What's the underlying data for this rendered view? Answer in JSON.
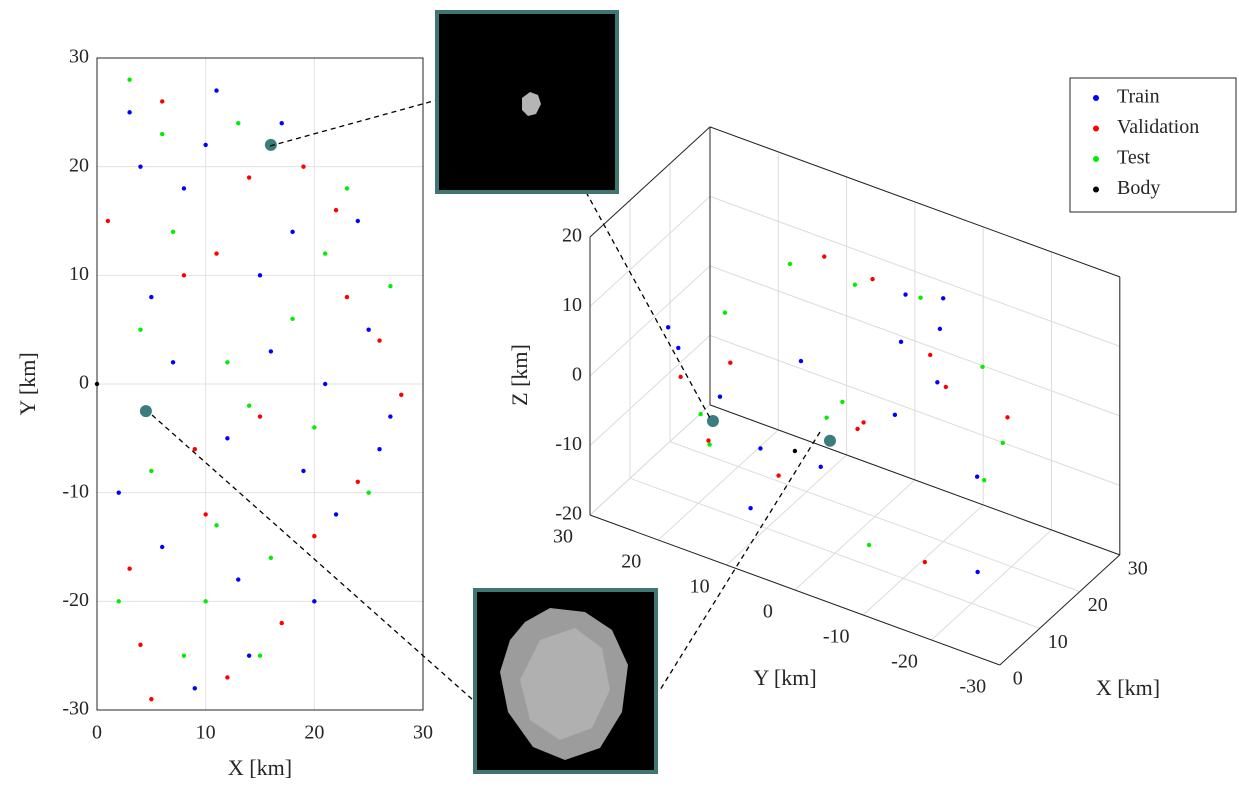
{
  "chart_data": [
    {
      "type": "scatter",
      "xlabel": "X [km]",
      "ylabel": "Y [km]",
      "xlim": [
        0,
        30
      ],
      "ylim": [
        -30,
        30
      ],
      "xticks": [
        0,
        10,
        20,
        30
      ],
      "yticks": [
        -30,
        -20,
        -10,
        0,
        10,
        20,
        30
      ],
      "grid": true,
      "series": [
        {
          "color": "#0000ff",
          "x": [
            3,
            8,
            12,
            15,
            20,
            25,
            27,
            6,
            10,
            18,
            22,
            5,
            14,
            9,
            24,
            2,
            16,
            11,
            7,
            19,
            13,
            4,
            21,
            26,
            17
          ],
          "y": [
            25,
            18,
            -5,
            10,
            -20,
            5,
            -3,
            -15,
            22,
            14,
            -12,
            8,
            -25,
            -28,
            15,
            -10,
            3,
            27,
            2,
            -8,
            -18,
            20,
            0,
            -6,
            24
          ]
        },
        {
          "color": "#ff0000",
          "x": [
            1,
            6,
            11,
            17,
            23,
            28,
            4,
            9,
            14,
            20,
            24,
            3,
            12,
            8,
            19,
            15,
            5,
            26,
            10,
            22
          ],
          "y": [
            15,
            26,
            12,
            -22,
            8,
            -1,
            -24,
            -6,
            19,
            -14,
            -9,
            -17,
            -27,
            10,
            20,
            -3,
            -29,
            4,
            -12,
            16
          ]
        },
        {
          "color": "#00ee00",
          "x": [
            2,
            7,
            13,
            18,
            25,
            5,
            10,
            16,
            21,
            3,
            12,
            8,
            23,
            15,
            6,
            20,
            27,
            11,
            4,
            14
          ],
          "y": [
            -20,
            14,
            24,
            6,
            -10,
            -8,
            -20,
            -16,
            12,
            28,
            2,
            -25,
            18,
            -25,
            23,
            -4,
            9,
            -13,
            5,
            -2
          ]
        },
        {
          "color": "#000000",
          "x": [
            0
          ],
          "y": [
            0
          ]
        }
      ],
      "highlight_color": "#3a7d7c",
      "highlights": [
        {
          "x": 16,
          "y": 22
        },
        {
          "x": 4.5,
          "y": -2.5
        }
      ]
    },
    {
      "type": "scatter3d",
      "xlabel": "X [km]",
      "ylabel": "Y [km]",
      "zlabel": "Z [km]",
      "xlim": [
        0,
        30
      ],
      "ylim": [
        -30,
        30
      ],
      "zlim": [
        -20,
        20
      ],
      "xticks": [
        0,
        10,
        20,
        30
      ],
      "yticks": [
        -30,
        -20,
        -10,
        0,
        10,
        20,
        30
      ],
      "zticks": [
        -20,
        -10,
        0,
        10,
        20
      ],
      "grid": true,
      "legend": "upper right",
      "series": [
        {
          "name": "Train",
          "color": "#0000ff",
          "x": [
            5,
            10,
            15,
            20,
            25,
            8,
            12,
            18,
            22,
            3,
            14,
            26,
            6,
            17,
            11
          ],
          "y": [
            20,
            -15,
            5,
            -10,
            0,
            -22,
            18,
            -5,
            12,
            -25,
            -8,
            -6,
            10,
            15,
            25
          ],
          "z": [
            5,
            10,
            -12,
            15,
            -8,
            0,
            -5,
            8,
            -3,
            -10,
            18,
            6,
            -15,
            -14,
            3
          ]
        },
        {
          "name": "Validation",
          "color": "#ff0000",
          "x": [
            7,
            13,
            19,
            24,
            4,
            16,
            21,
            9,
            27,
            12,
            2,
            18
          ],
          "y": [
            -18,
            10,
            -20,
            4,
            15,
            -2,
            8,
            22,
            -4,
            -12,
            -8,
            20
          ],
          "z": [
            12,
            -14,
            2,
            -10,
            -6,
            17,
            14,
            -2,
            1,
            -18,
            5,
            -4
          ]
        },
        {
          "name": "Test",
          "color": "#00ee00",
          "x": [
            6,
            11,
            15,
            23,
            9,
            20,
            14,
            3,
            25,
            17,
            10,
            28
          ],
          "y": [
            16,
            -24,
            0,
            -14,
            6,
            -16,
            22,
            12,
            10,
            3,
            -5,
            -2
          ],
          "z": [
            -8,
            4,
            16,
            5,
            20,
            -9,
            -10,
            14,
            -12,
            -3,
            -17,
            8
          ]
        },
        {
          "name": "Body",
          "color": "#000000",
          "x": [
            0
          ],
          "y": [
            0
          ],
          "z": [
            0
          ]
        }
      ],
      "highlight_color": "#3a7d7c",
      "highlights": [
        {
          "x": 0,
          "y": 12,
          "z": 0
        },
        {
          "x": 4.5,
          "y": -2.5,
          "z": 0
        }
      ]
    }
  ]
}
